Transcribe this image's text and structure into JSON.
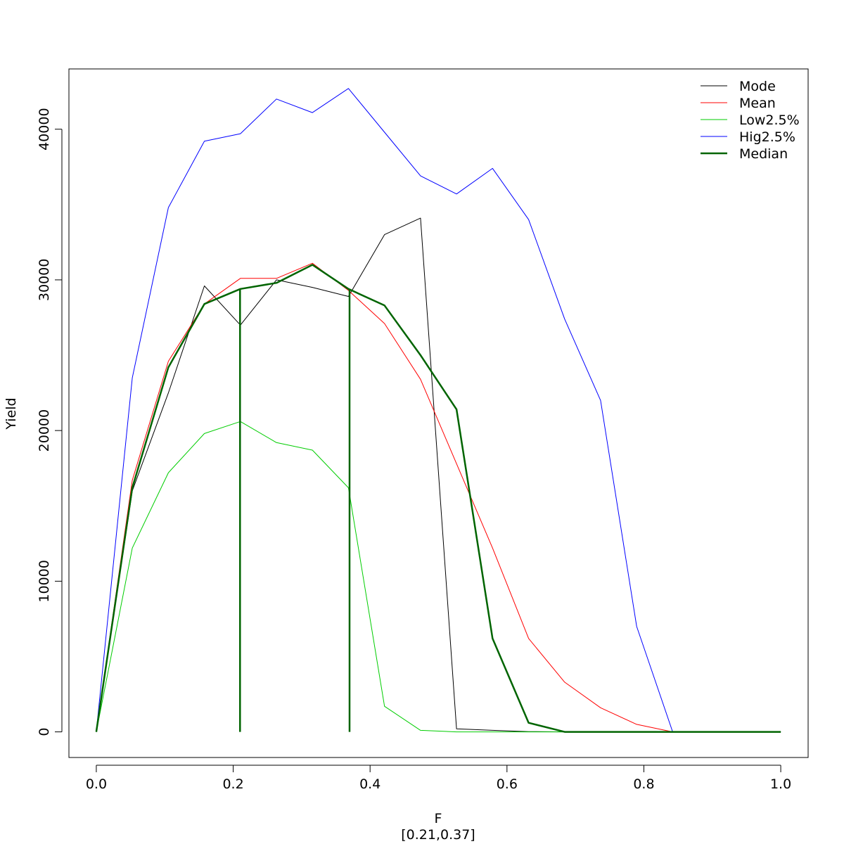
{
  "chart_data": {
    "type": "line",
    "xlabel": "F",
    "xlabel_sub": "[0.21,0.37]",
    "ylabel": "Yield",
    "xlim": [
      -0.04,
      1.04
    ],
    "ylim": [
      -1700,
      44000
    ],
    "x_ticks": [
      0.0,
      0.2,
      0.4,
      0.6,
      0.8,
      1.0
    ],
    "x_tick_labels": [
      "0.0",
      "0.2",
      "0.4",
      "0.6",
      "0.8",
      "1.0"
    ],
    "y_ticks": [
      0,
      10000,
      20000,
      30000,
      40000
    ],
    "y_tick_labels": [
      "0",
      "10000",
      "20000",
      "30000",
      "40000"
    ],
    "grid": false,
    "legend_position": "top-right",
    "x": [
      0,
      0.0526,
      0.1053,
      0.1579,
      0.2105,
      0.2632,
      0.3158,
      0.3684,
      0.4211,
      0.4737,
      0.5263,
      0.5789,
      0.6316,
      0.6842,
      0.7368,
      0.7895,
      0.8421,
      0.8947,
      0.9474,
      1.0
    ],
    "series": [
      {
        "name": "Mode",
        "color": "#000000",
        "width": 1,
        "values": [
          0,
          16000,
          22500,
          29600,
          27000,
          30000,
          29500,
          28900,
          33000,
          34100,
          200,
          100,
          20,
          0,
          0,
          0,
          0,
          0,
          0,
          0
        ]
      },
      {
        "name": "Mean",
        "color": "#ff0000",
        "width": 1,
        "values": [
          0,
          16700,
          24600,
          28400,
          30100,
          30100,
          31100,
          29300,
          27100,
          23400,
          17800,
          12200,
          6200,
          3300,
          1600,
          500,
          0,
          0,
          0,
          0
        ]
      },
      {
        "name": "Low2.5%",
        "color": "#00cd00",
        "width": 1,
        "values": [
          0,
          12200,
          17200,
          19800,
          20600,
          19200,
          18700,
          16200,
          1700,
          100,
          0,
          0,
          0,
          0,
          0,
          0,
          0,
          0,
          0,
          0
        ]
      },
      {
        "name": "Hig2.5%",
        "color": "#0000ff",
        "width": 1,
        "values": [
          0,
          23500,
          34800,
          39200,
          39700,
          42000,
          41100,
          42700,
          39800,
          36900,
          35700,
          37400,
          34000,
          27400,
          22000,
          7000,
          0,
          0,
          0,
          0
        ]
      },
      {
        "name": "Median",
        "color": "#006400",
        "width": 2.5,
        "values": [
          0,
          16200,
          24200,
          28400,
          29400,
          29800,
          31000,
          29400,
          28300,
          25000,
          21400,
          6200,
          600,
          0,
          0,
          0,
          0,
          0,
          0,
          0
        ]
      }
    ],
    "vertical_lines": [
      {
        "x": 0.21,
        "y0": 0,
        "y1": 29400,
        "color": "#006400"
      },
      {
        "x": 0.37,
        "y0": 0,
        "y1": 29400,
        "color": "#006400"
      }
    ]
  }
}
